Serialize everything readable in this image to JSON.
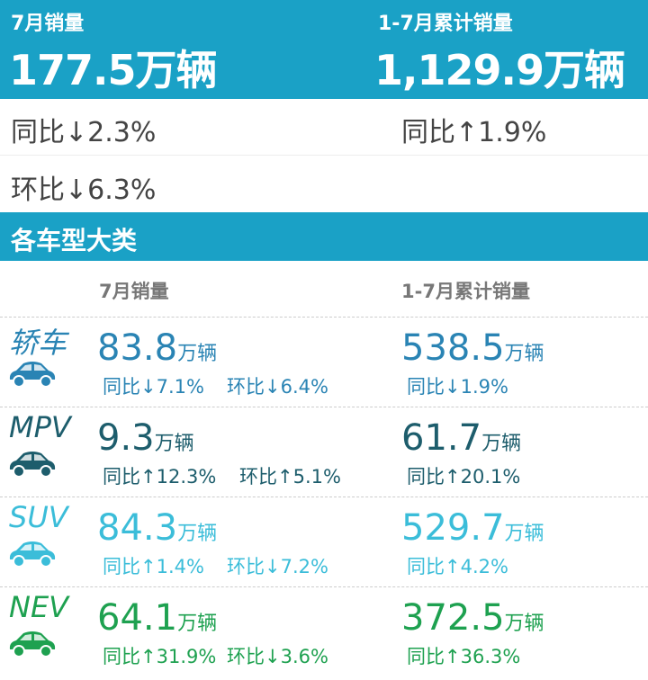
{
  "header": {
    "month_label": "7月销量",
    "month_value": "177.5万辆",
    "ytd_label": "1-7月累计销量",
    "ytd_value": "1,129.9万辆"
  },
  "summary": {
    "month_yoy": "同比↓2.3%",
    "month_mom": "环比↓6.3%",
    "ytd_yoy": "同比↑1.9%"
  },
  "section_title": "各车型大类",
  "columns": {
    "month": "7月销量",
    "ytd": "1-7月累计销量"
  },
  "unit": "万辆",
  "rows": [
    {
      "name": "轿车",
      "icon": "sedan-icon",
      "color": "#2a84b4",
      "month": "83.8",
      "yoy": "同比↓7.1%",
      "mom": "环比↓6.4%",
      "ytd": "538.5",
      "ytd_yoy": "同比↓1.9%"
    },
    {
      "name": "MPV",
      "icon": "mpv-icon",
      "color": "#1d5d6c",
      "month": "9.3",
      "yoy": "同比↑12.3%",
      "mom": "环比↑5.1%",
      "ytd": "61.7",
      "ytd_yoy": "同比↑20.1%"
    },
    {
      "name": "SUV",
      "icon": "suv-icon",
      "color": "#3bbdd9",
      "month": "84.3",
      "yoy": "同比↑1.4%",
      "mom": "环比↓7.2%",
      "ytd": "529.7",
      "ytd_yoy": "同比↑4.2%"
    },
    {
      "name": "NEV",
      "icon": "ev-car-icon",
      "color": "#1ea150",
      "month": "64.1",
      "yoy": "同比↑31.9%",
      "mom": "环比↓3.6%",
      "ytd": "372.5",
      "ytd_yoy": "同比↑36.3%"
    }
  ],
  "colors": {
    "band": "#1aa1c6"
  }
}
